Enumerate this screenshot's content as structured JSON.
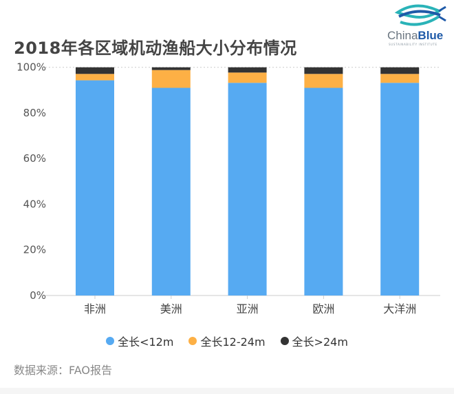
{
  "chart_data": {
    "type": "bar",
    "stacked": true,
    "title": "2018年各区域机动渔船大小分布情况",
    "categories": [
      "非洲",
      "美洲",
      "亚洲",
      "欧洲",
      "大洋洲"
    ],
    "series": [
      {
        "name": "全长<12m",
        "color": "#56aaf2",
        "values": [
          94.3,
          91.0,
          93.2,
          91.0,
          93.2
        ]
      },
      {
        "name": "全长12-24m",
        "color": "#fdb045",
        "values": [
          2.8,
          7.8,
          4.5,
          6.1,
          3.9
        ]
      },
      {
        "name": "全长>24m",
        "color": "#333333",
        "values": [
          2.9,
          1.2,
          2.3,
          2.9,
          2.9
        ]
      }
    ],
    "yticks": [
      "0%",
      "20%",
      "40%",
      "60%",
      "80%",
      "100%"
    ],
    "ylim": [
      0,
      100
    ],
    "grid": "dotted horizontal at 100%",
    "legend": "bottom"
  },
  "logo": {
    "name": "China",
    "name_bold": "Blue",
    "sub": "SUSTAINABILITY INSTITUTE"
  },
  "source": "数据来源：FAO报告"
}
